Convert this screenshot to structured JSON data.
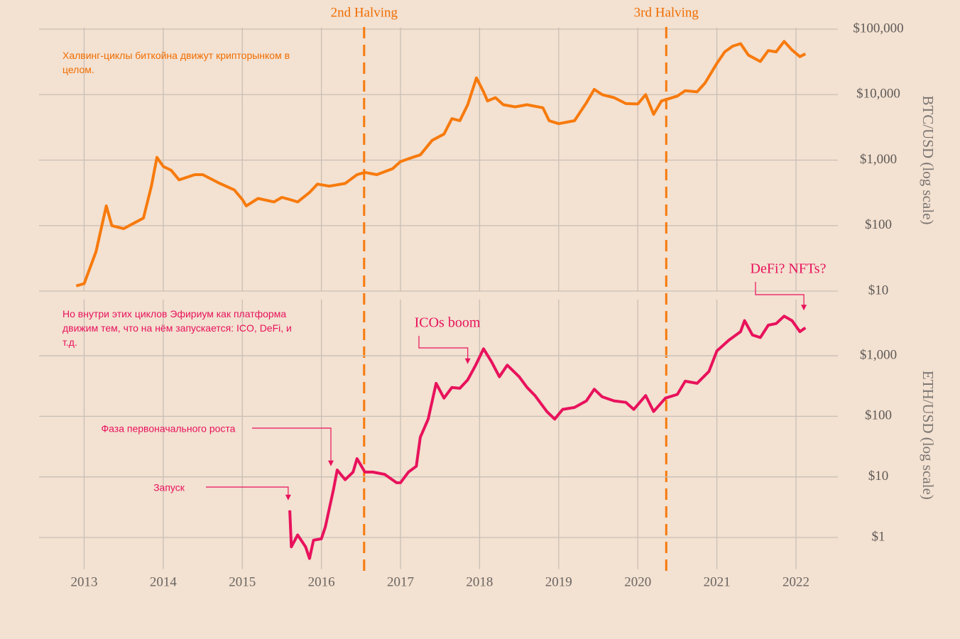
{
  "chart_data": [
    {
      "type": "line",
      "ylabel": "BTC/USD (log scale)",
      "yscale": "log",
      "grid": true,
      "color": "#f77a0c",
      "note": "Халвинг-циклы биткойна движут крипторынком в целом.",
      "xlim": [
        2012.43,
        2022.53
      ],
      "ylim": [
        10,
        100000
      ],
      "yticks": [
        {
          "value": 10,
          "label": "$10"
        },
        {
          "value": 100,
          "label": "$100"
        },
        {
          "value": 1000,
          "label": "$1,000"
        },
        {
          "value": 10000,
          "label": "$10,000"
        },
        {
          "value": 100000,
          "label": "$100,000"
        }
      ],
      "halvings": [
        {
          "text": "2nd Halving",
          "x": 2016.54
        },
        {
          "text": "3rd Halving",
          "x": 2020.36
        }
      ],
      "x": [
        2012.9,
        2013.0,
        2013.15,
        2013.28,
        2013.35,
        2013.5,
        2013.75,
        2013.85,
        2013.92,
        2014.0,
        2014.1,
        2014.2,
        2014.4,
        2014.5,
        2014.7,
        2014.9,
        2015.0,
        2015.05,
        2015.2,
        2015.4,
        2015.5,
        2015.6,
        2015.7,
        2015.85,
        2015.95,
        2016.1,
        2016.3,
        2016.45,
        2016.55,
        2016.7,
        2016.9,
        2017.0,
        2017.15,
        2017.25,
        2017.4,
        2017.55,
        2017.65,
        2017.75,
        2017.85,
        2017.96,
        2018.05,
        2018.1,
        2018.2,
        2018.3,
        2018.45,
        2018.6,
        2018.8,
        2018.88,
        2019.0,
        2019.2,
        2019.35,
        2019.45,
        2019.55,
        2019.7,
        2019.85,
        2020.0,
        2020.1,
        2020.2,
        2020.3,
        2020.5,
        2020.6,
        2020.75,
        2020.85,
        2021.0,
        2021.1,
        2021.2,
        2021.3,
        2021.4,
        2021.55,
        2021.65,
        2021.75,
        2021.85,
        2021.95,
        2022.05,
        2022.12
      ],
      "values": [
        12,
        13,
        40,
        200,
        100,
        90,
        130,
        400,
        1100,
        800,
        700,
        500,
        600,
        600,
        450,
        350,
        250,
        200,
        260,
        230,
        270,
        250,
        230,
        320,
        430,
        400,
        440,
        600,
        650,
        600,
        740,
        950,
        1100,
        1200,
        2000,
        2500,
        4300,
        4000,
        7000,
        18000,
        11000,
        8000,
        9000,
        7000,
        6500,
        7000,
        6300,
        4000,
        3600,
        4000,
        7500,
        12000,
        10000,
        9000,
        7300,
        7200,
        10000,
        5000,
        8000,
        9500,
        11500,
        11000,
        15000,
        30000,
        45000,
        55000,
        60000,
        40000,
        32000,
        47000,
        45000,
        65000,
        48000,
        38000,
        42000
      ]
    },
    {
      "type": "line",
      "ylabel": "ETH/USD (log scale)",
      "yscale": "log",
      "grid": true,
      "color": "#e8125c",
      "note": "Но внутри этих циклов Эфириум как платформа движим тем, что на нём запускается: ICO, DeFi, и т.д.",
      "xlim": [
        2012.43,
        2022.53
      ],
      "ylim": [
        0.3,
        8000
      ],
      "xticks": [
        2013,
        2014,
        2015,
        2016,
        2017,
        2018,
        2019,
        2020,
        2021,
        2022
      ],
      "yticks": [
        {
          "value": 1,
          "label": "$1"
        },
        {
          "value": 10,
          "label": "$10"
        },
        {
          "value": 100,
          "label": "$100"
        },
        {
          "value": 1000,
          "label": "$1,000"
        }
      ],
      "annotations": [
        {
          "text": "ICOs boom",
          "x": 2017.85,
          "y": 730
        },
        {
          "text": "DeFi? NFTs?",
          "x": 2022.1,
          "y": 5600
        },
        {
          "text": "Фаза первоначального роста",
          "x": 2016.12,
          "y": 15
        },
        {
          "text": "Запуск",
          "x": 2015.58,
          "y": 4.1
        }
      ],
      "x": [
        2015.6,
        2015.62,
        2015.7,
        2015.8,
        2015.85,
        2015.9,
        2016.0,
        2016.05,
        2016.15,
        2016.2,
        2016.3,
        2016.4,
        2016.45,
        2016.55,
        2016.65,
        2016.8,
        2016.95,
        2017.0,
        2017.1,
        2017.2,
        2017.25,
        2017.35,
        2017.45,
        2017.55,
        2017.65,
        2017.75,
        2017.85,
        2017.95,
        2018.05,
        2018.15,
        2018.25,
        2018.35,
        2018.5,
        2018.6,
        2018.7,
        2018.85,
        2018.95,
        2019.05,
        2019.2,
        2019.35,
        2019.45,
        2019.55,
        2019.7,
        2019.85,
        2019.95,
        2020.1,
        2020.2,
        2020.35,
        2020.5,
        2020.6,
        2020.75,
        2020.9,
        2021.0,
        2021.15,
        2021.3,
        2021.35,
        2021.45,
        2021.55,
        2021.65,
        2021.75,
        2021.85,
        2021.95,
        2022.05,
        2022.12
      ],
      "values": [
        2.8,
        0.7,
        1.1,
        0.7,
        0.45,
        0.9,
        0.95,
        1.5,
        6,
        13,
        9,
        12,
        20,
        12,
        12,
        11,
        8,
        8,
        12,
        15,
        45,
        90,
        350,
        200,
        300,
        290,
        400,
        700,
        1300,
        800,
        450,
        700,
        450,
        300,
        220,
        120,
        90,
        130,
        140,
        180,
        280,
        210,
        180,
        170,
        130,
        220,
        120,
        200,
        230,
        380,
        350,
        550,
        1200,
        1800,
        2500,
        3800,
        2200,
        2000,
        3200,
        3400,
        4500,
        3800,
        2500,
        2900
      ]
    }
  ]
}
